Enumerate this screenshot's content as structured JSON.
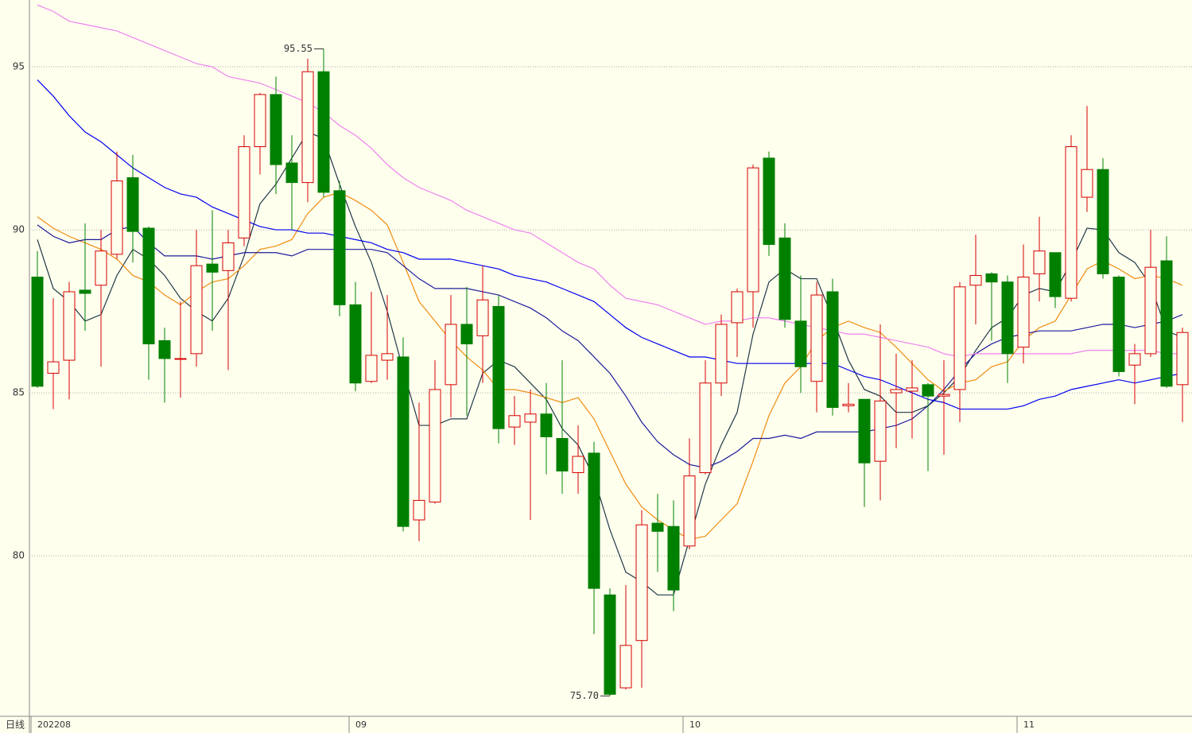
{
  "chart_data": {
    "type": "candlestick",
    "period": "日线",
    "categories": [
      "202208",
      null,
      null,
      null,
      null,
      null,
      null,
      null,
      null,
      null,
      null,
      null,
      null,
      null,
      null,
      null,
      null,
      null,
      null,
      null,
      "09",
      null,
      null,
      null,
      null,
      null,
      null,
      null,
      null,
      null,
      null,
      null,
      null,
      null,
      null,
      null,
      null,
      null,
      null,
      null,
      null,
      "10",
      null,
      null,
      null,
      null,
      null,
      null,
      null,
      null,
      null,
      null,
      null,
      null,
      null,
      null,
      null,
      null,
      null,
      null,
      null,
      null,
      "11",
      null,
      null,
      null,
      null,
      null,
      null,
      null,
      null,
      null,
      null
    ],
    "open": [
      88.55,
      85.6,
      86.0,
      88.15,
      88.3,
      89.25,
      91.6,
      90.05,
      86.6,
      86.05,
      86.2,
      88.95,
      88.75,
      89.75,
      92.55,
      94.15,
      92.05,
      91.45,
      94.85,
      91.2,
      87.7,
      85.35,
      86.0,
      86.1,
      81.1,
      81.65,
      85.25,
      87.1,
      86.75,
      87.65,
      83.95,
      84.1,
      84.35,
      83.6,
      82.55,
      83.15,
      78.8,
      75.95,
      77.4,
      81.0,
      80.9,
      80.3,
      82.55,
      85.3,
      87.15,
      88.1,
      92.2,
      89.75,
      87.2,
      85.35,
      88.1,
      84.6,
      84.8,
      82.9,
      85.0,
      85.05,
      85.25,
      84.9,
      85.1,
      88.3,
      88.65,
      88.4,
      86.4,
      88.65,
      89.3,
      87.9,
      91.0,
      91.85,
      88.55,
      85.85,
      86.2,
      89.05,
      85.25
    ],
    "high": [
      89.35,
      87.9,
      88.4,
      90.2,
      90.0,
      92.4,
      92.3,
      90.1,
      87.0,
      87.8,
      90.0,
      90.6,
      90.0,
      92.9,
      94.2,
      94.7,
      92.9,
      95.25,
      95.55,
      91.5,
      88.4,
      88.1,
      88.0,
      86.7,
      84.7,
      86.0,
      88.0,
      88.25,
      88.9,
      88.0,
      84.9,
      85.1,
      85.3,
      86.0,
      84.0,
      83.5,
      79.0,
      79.1,
      81.4,
      81.9,
      81.7,
      83.6,
      86.0,
      87.4,
      88.2,
      92.0,
      92.4,
      90.2,
      88.6,
      88.4,
      88.5,
      85.3,
      84.8,
      87.1,
      86.2,
      86.0,
      85.3,
      86.0,
      88.4,
      89.85,
      88.7,
      88.6,
      89.55,
      90.4,
      89.3,
      92.9,
      93.8,
      92.2,
      88.6,
      86.5,
      90.0,
      89.8,
      87.0
    ],
    "low": [
      85.15,
      84.5,
      84.8,
      86.9,
      85.8,
      89.1,
      89.0,
      85.4,
      84.7,
      84.85,
      85.8,
      86.9,
      85.7,
      89.5,
      91.7,
      91.1,
      90.0,
      90.85,
      91.0,
      87.35,
      85.05,
      85.3,
      85.4,
      80.75,
      80.45,
      81.6,
      84.25,
      84.3,
      85.3,
      83.45,
      83.4,
      81.1,
      82.5,
      81.9,
      81.9,
      77.6,
      75.7,
      75.9,
      75.95,
      79.5,
      78.3,
      80.2,
      82.5,
      84.9,
      86.1,
      87.0,
      89.2,
      87.0,
      85.0,
      84.4,
      84.3,
      84.4,
      81.5,
      81.7,
      83.3,
      83.6,
      82.6,
      83.1,
      84.1,
      87.1,
      86.6,
      85.3,
      85.9,
      87.8,
      87.6,
      87.8,
      90.55,
      88.5,
      85.5,
      84.65,
      86.1,
      85.15,
      84.1
    ],
    "close": [
      85.2,
      85.95,
      88.1,
      88.05,
      89.35,
      91.5,
      89.95,
      86.5,
      86.05,
      86.05,
      88.9,
      88.7,
      89.6,
      92.55,
      94.15,
      92.0,
      91.45,
      94.85,
      91.15,
      87.7,
      85.3,
      86.15,
      86.2,
      80.9,
      81.7,
      85.1,
      87.1,
      86.5,
      87.85,
      83.9,
      84.3,
      84.35,
      83.65,
      82.6,
      83.05,
      79.0,
      75.75,
      77.25,
      80.95,
      80.75,
      78.95,
      82.45,
      85.3,
      87.1,
      88.1,
      91.9,
      89.55,
      87.25,
      85.8,
      88.0,
      84.55,
      84.65,
      82.85,
      84.75,
      85.1,
      85.15,
      84.9,
      84.95,
      88.25,
      88.6,
      88.4,
      86.2,
      88.55,
      89.35,
      87.95,
      92.55,
      91.85,
      88.65,
      85.65,
      86.2,
      88.85,
      85.2,
      86.85
    ],
    "up_color": "#d40000",
    "down_color": "#008000",
    "high_label": "95.55",
    "low_label": "75.70",
    "lines": [
      {
        "color": "#203848",
        "values": [
          89.7,
          88.2,
          87.8,
          87.2,
          87.4,
          88.6,
          89.4,
          89.1,
          88.6,
          87.9,
          87.5,
          87.2,
          87.9,
          89.2,
          90.8,
          91.4,
          92.2,
          93.0,
          92.8,
          91.4,
          90.1,
          89.0,
          87.5,
          85.7,
          84.0,
          84.0,
          84.2,
          84.2,
          85.6,
          86.0,
          85.8,
          85.3,
          84.8,
          83.9,
          83.4,
          82.4,
          80.8,
          79.5,
          79.2,
          78.8,
          78.8,
          80.5,
          82.2,
          83.4,
          84.4,
          86.8,
          88.4,
          88.8,
          88.5,
          88.5,
          87.3,
          86.0,
          85.1,
          84.9,
          84.4,
          84.4,
          84.6,
          85.0,
          85.5,
          86.3,
          87.0,
          87.3,
          88.0,
          88.2,
          88.1,
          89.0,
          90.05,
          90.0,
          89.3,
          89.0,
          88.3,
          86.9,
          86.7
        ]
      },
      {
        "color": "#f08c10",
        "values": [
          90.4,
          90.05,
          89.8,
          89.6,
          89.4,
          89.1,
          88.6,
          88.4,
          88.0,
          87.7,
          88.1,
          88.4,
          88.5,
          88.9,
          89.4,
          89.5,
          89.7,
          90.5,
          91.0,
          91.15,
          90.9,
          90.6,
          90.15,
          89.0,
          87.8,
          87.2,
          86.6,
          86.1,
          85.7,
          85.1,
          85.1,
          85.0,
          84.85,
          84.7,
          84.85,
          84.2,
          83.2,
          82.2,
          81.5,
          81.1,
          80.8,
          80.5,
          80.6,
          81.1,
          81.6,
          82.9,
          84.3,
          85.3,
          85.8,
          86.6,
          87.0,
          87.2,
          87.0,
          86.85,
          86.4,
          85.9,
          85.4,
          85.05,
          85.3,
          85.4,
          85.8,
          85.95,
          86.6,
          87.0,
          87.2,
          88.0,
          88.8,
          89.05,
          88.8,
          88.5,
          88.6,
          88.5,
          88.3
        ]
      },
      {
        "color": "#1c1c9c",
        "values": [
          90.15,
          89.8,
          89.6,
          89.7,
          89.7,
          90.0,
          90.1,
          89.6,
          89.2,
          89.2,
          89.2,
          89.1,
          89.2,
          89.3,
          89.3,
          89.3,
          89.2,
          89.4,
          89.4,
          89.4,
          89.4,
          89.4,
          89.3,
          88.9,
          88.5,
          88.2,
          88.2,
          88.2,
          88.1,
          88.0,
          87.8,
          87.6,
          87.3,
          86.9,
          86.6,
          86.1,
          85.6,
          84.9,
          84.1,
          83.5,
          83.1,
          82.8,
          82.7,
          82.9,
          83.2,
          83.6,
          83.6,
          83.7,
          83.6,
          83.8,
          83.8,
          83.8,
          83.8,
          83.9,
          84.0,
          84.2,
          84.6,
          85.1,
          85.7,
          86.2,
          86.5,
          86.7,
          86.8,
          86.9,
          86.9,
          86.9,
          87.0,
          87.1,
          87.1,
          87.0,
          87.1,
          87.2,
          87.4
        ]
      },
      {
        "color": "#0000f0",
        "values": [
          94.6,
          94.1,
          93.5,
          93.0,
          92.7,
          92.3,
          91.9,
          91.6,
          91.3,
          91.1,
          91.0,
          90.7,
          90.5,
          90.3,
          90.1,
          90.0,
          90.0,
          89.9,
          89.9,
          89.8,
          89.7,
          89.6,
          89.4,
          89.3,
          89.1,
          89.1,
          89.1,
          89.0,
          88.9,
          88.8,
          88.6,
          88.5,
          88.4,
          88.2,
          88.0,
          87.8,
          87.4,
          87.0,
          86.7,
          86.5,
          86.3,
          86.1,
          86.1,
          86.0,
          85.9,
          85.9,
          85.9,
          85.9,
          85.9,
          85.9,
          85.9,
          85.7,
          85.5,
          85.4,
          85.2,
          85.0,
          84.8,
          84.7,
          84.5,
          84.5,
          84.5,
          84.5,
          84.6,
          84.8,
          84.9,
          85.1,
          85.2,
          85.3,
          85.4,
          85.3,
          85.4,
          85.5,
          85.6
        ]
      },
      {
        "color": "#ee82ee",
        "values": [
          96.9,
          96.7,
          96.4,
          96.3,
          96.2,
          96.1,
          95.9,
          95.7,
          95.5,
          95.3,
          95.1,
          95.0,
          94.7,
          94.6,
          94.5,
          94.3,
          94.1,
          93.9,
          93.6,
          93.2,
          92.9,
          92.5,
          92.0,
          91.6,
          91.3,
          91.1,
          90.9,
          90.6,
          90.4,
          90.2,
          90.0,
          89.9,
          89.6,
          89.3,
          89.0,
          88.8,
          88.3,
          87.9,
          87.8,
          87.7,
          87.5,
          87.3,
          87.1,
          87.2,
          87.2,
          87.3,
          87.3,
          87.2,
          87.1,
          87.0,
          86.9,
          86.8,
          86.8,
          86.7,
          86.6,
          86.5,
          86.4,
          86.2,
          86.1,
          86.2,
          86.2,
          86.2,
          86.2,
          86.2,
          86.2,
          86.2,
          86.3,
          86.3,
          86.3,
          86.3,
          86.3,
          86.2,
          86.2
        ]
      }
    ],
    "ylim": [
      75.1,
      97.05
    ],
    "yticks": [
      80,
      85,
      90,
      95
    ],
    "grid": true
  }
}
